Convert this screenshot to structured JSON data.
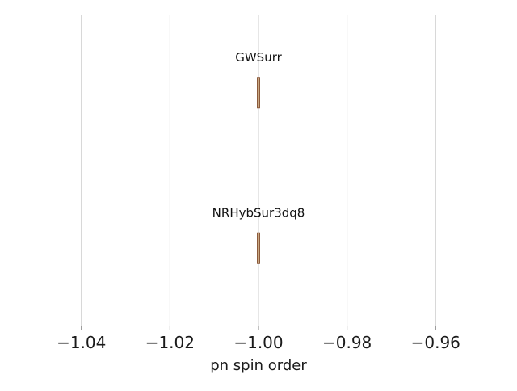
{
  "chart_data": {
    "type": "box",
    "xlabel": "pn spin order",
    "xlim": [
      -1.055,
      -0.945
    ],
    "xticks": [
      -1.04,
      -1.02,
      -1.0,
      -0.98,
      -0.96
    ],
    "xtick_labels": [
      "−1.04",
      "−1.02",
      "−1.00",
      "−0.98",
      "−0.96"
    ],
    "grid": "vertical",
    "categories": [
      "GWSurr",
      "NRHybSur3dq8"
    ],
    "values": [
      -1.0,
      -1.0
    ],
    "colors": {
      "box_fill": "#c8a882",
      "box_edge": "#8b5a3c",
      "grid": "#cccccc",
      "frame": "#808080"
    }
  }
}
